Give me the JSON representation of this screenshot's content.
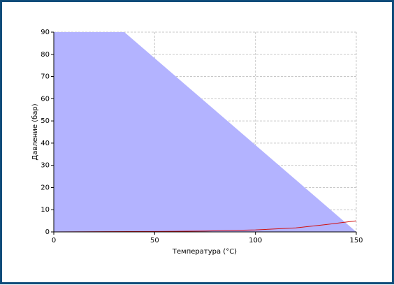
{
  "chart_data": {
    "type": "area",
    "xlabel": "Температура (°C)",
    "ylabel": "Давление (бар)",
    "xlim": [
      0,
      150
    ],
    "xticks": [
      0,
      50,
      100,
      150
    ],
    "ylim": [
      0,
      90
    ],
    "yticks": [
      0,
      10,
      20,
      30,
      40,
      50,
      60,
      70,
      80,
      90
    ],
    "grid": true,
    "series": [
      {
        "type": "area",
        "color": "#b3b3ff",
        "x": [
          0,
          35,
          150
        ],
        "values": [
          90,
          90,
          0
        ]
      },
      {
        "type": "line",
        "color": "#d01010",
        "x": [
          0,
          25,
          50,
          75,
          100,
          120,
          135,
          150
        ],
        "values": [
          0,
          0.1,
          0.2,
          0.4,
          0.9,
          1.8,
          3.3,
          5
        ]
      }
    ]
  }
}
